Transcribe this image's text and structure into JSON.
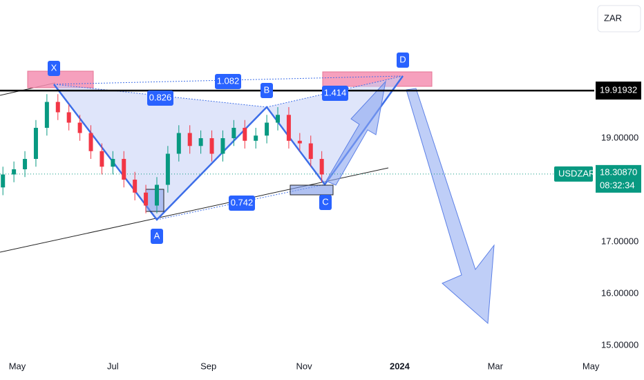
{
  "chart_data": {
    "type": "candlestick",
    "symbol": "USDZAR",
    "currency_button": "ZAR",
    "countdown": "08:32:34",
    "x": [
      -0.3,
      -0.07,
      0.16,
      0.39,
      0.62,
      0.85,
      1.08,
      1.31,
      1.54,
      1.77,
      2.0,
      2.23,
      2.46,
      2.69,
      2.92,
      3.15,
      3.38,
      3.61,
      3.84,
      4.07,
      4.3,
      4.53,
      4.76,
      4.99,
      5.22,
      5.45,
      5.68,
      5.91,
      6.14,
      6.37
    ],
    "open": [
      18.05,
      18.3,
      18.4,
      18.6,
      19.2,
      19.7,
      19.5,
      19.3,
      19.1,
      18.75,
      18.45,
      18.6,
      18.2,
      17.95,
      17.7,
      18.1,
      18.7,
      19.1,
      18.85,
      19.0,
      18.7,
      19.0,
      19.2,
      18.95,
      19.05,
      19.3,
      19.45,
      18.95,
      18.9,
      18.6
    ],
    "high": [
      18.45,
      18.55,
      18.75,
      19.35,
      19.85,
      19.85,
      19.65,
      19.45,
      19.25,
      18.9,
      18.75,
      18.75,
      18.35,
      18.1,
      18.25,
      18.85,
      19.25,
      19.25,
      19.15,
      19.15,
      19.15,
      19.35,
      19.35,
      19.2,
      19.45,
      19.6,
      19.6,
      19.1,
      19.05,
      18.75
    ],
    "low": [
      17.9,
      18.15,
      18.25,
      18.45,
      19.05,
      19.35,
      19.15,
      18.95,
      18.6,
      18.3,
      18.3,
      18.05,
      17.8,
      17.55,
      17.55,
      17.95,
      18.55,
      18.7,
      18.7,
      18.55,
      18.55,
      18.85,
      18.8,
      18.8,
      18.9,
      19.15,
      18.8,
      18.75,
      18.45,
      18.15
    ],
    "close": [
      18.3,
      18.4,
      18.6,
      19.2,
      19.7,
      19.5,
      19.3,
      19.1,
      18.75,
      18.45,
      18.6,
      18.2,
      17.95,
      17.7,
      18.1,
      18.7,
      19.1,
      18.85,
      19.0,
      18.7,
      19.0,
      19.2,
      18.95,
      19.05,
      19.3,
      19.45,
      18.95,
      18.9,
      18.6,
      18.3
    ],
    "up_color": "#089981",
    "down_color": "#f23645",
    "xlim": [
      -0.361,
      12.07
    ],
    "xticks": [
      {
        "value": 0,
        "label": "May"
      },
      {
        "value": 2,
        "label": "Jul"
      },
      {
        "value": 4,
        "label": "Sep"
      },
      {
        "value": 6,
        "label": "Nov"
      },
      {
        "value": 8,
        "label": "2024"
      },
      {
        "value": 10,
        "label": "Mar"
      },
      {
        "value": 12,
        "label": "May"
      }
    ],
    "ylim": [
      14.8,
      21.667
    ],
    "yticks": [
      {
        "value": 15,
        "label": "15.00000"
      },
      {
        "value": 16,
        "label": "16.00000"
      },
      {
        "value": 17,
        "label": "17.00000"
      },
      {
        "value": 19,
        "label": "19.00000"
      }
    ],
    "resistance_price": 19.91932,
    "last_price": {
      "value": 18.3087,
      "label": "18.30870"
    },
    "annotations": {
      "points": [
        "X",
        "A",
        "B",
        "C",
        "D"
      ],
      "ratios": [
        "0.826",
        "1.082",
        "0.742",
        "1.414"
      ]
    }
  }
}
